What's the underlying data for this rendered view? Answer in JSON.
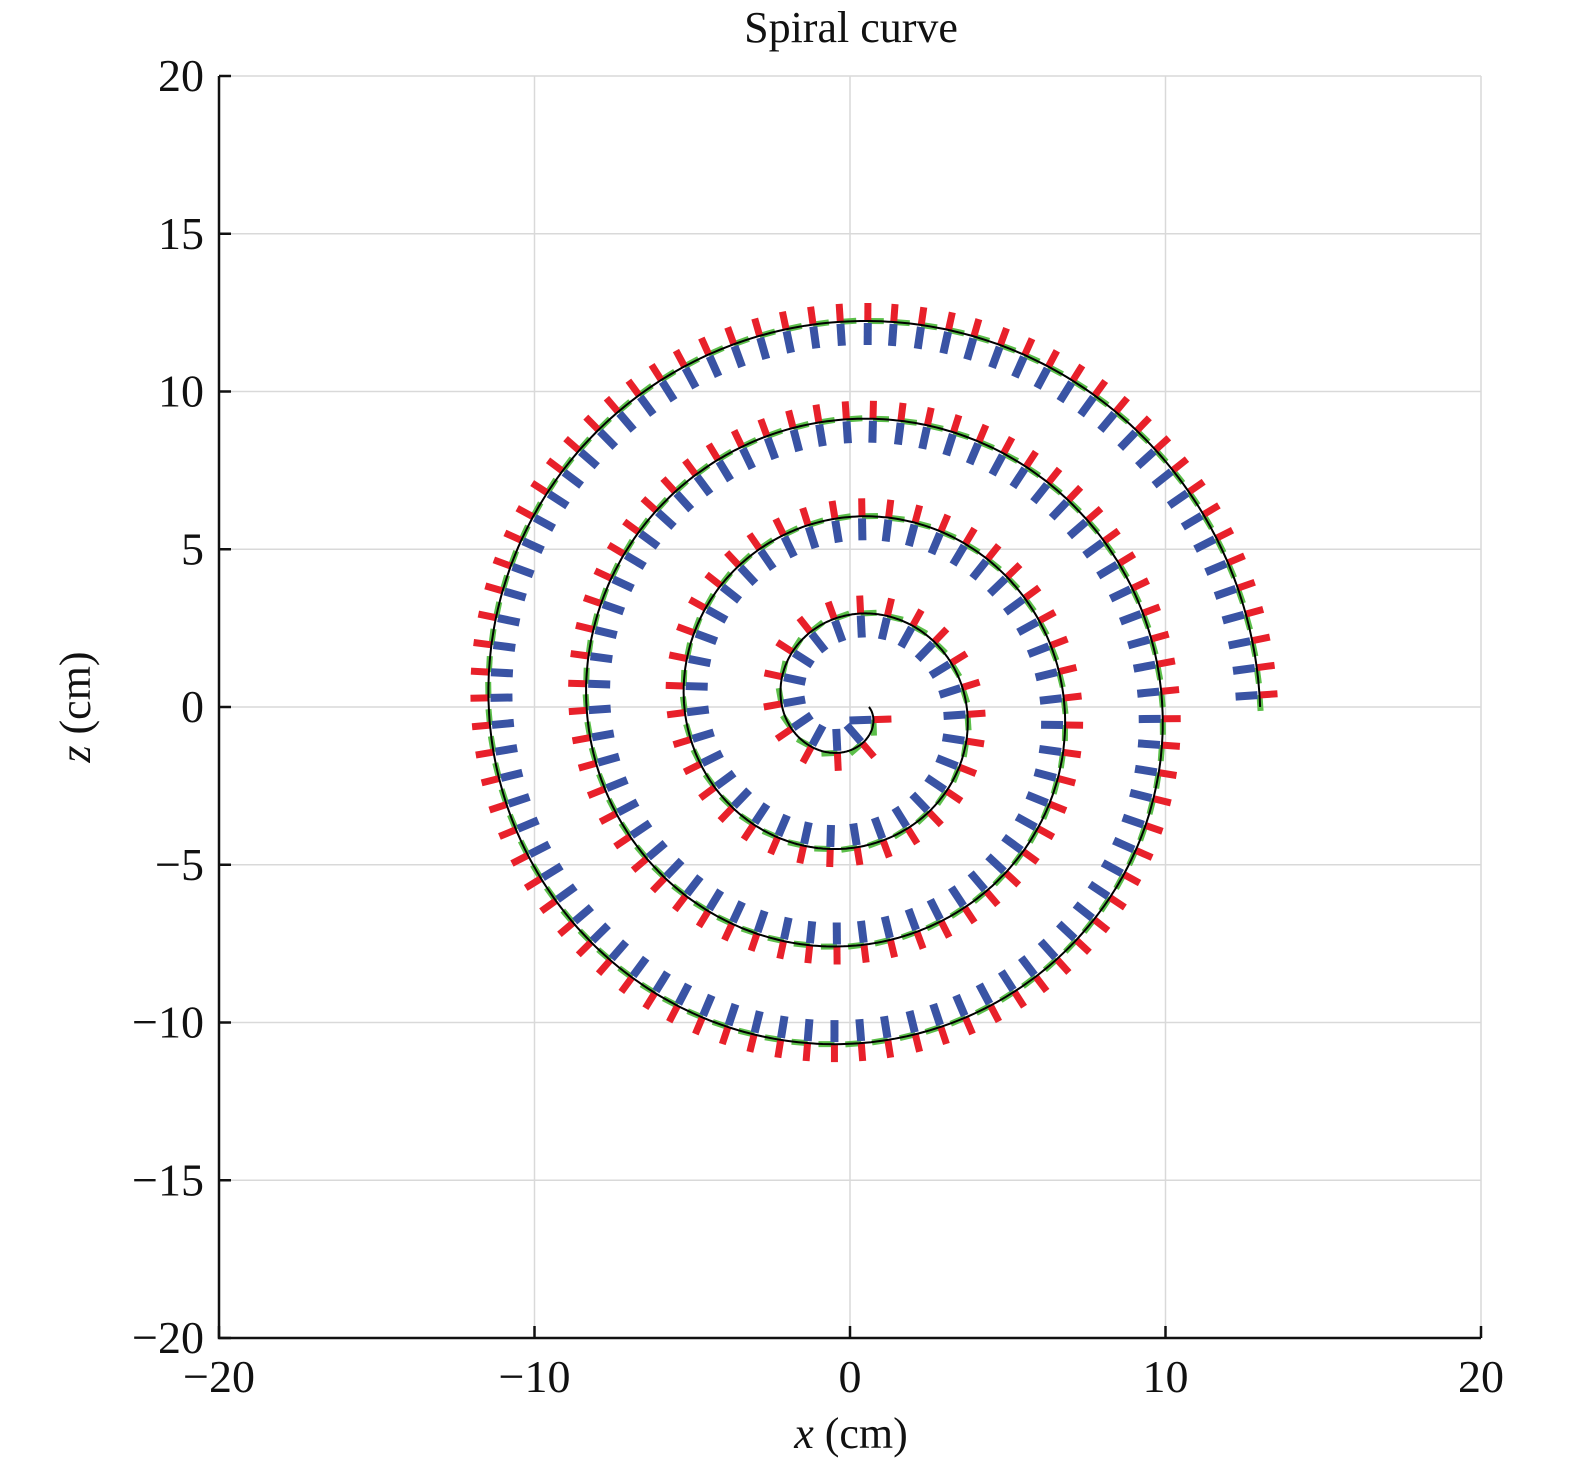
{
  "chart_data": {
    "type": "line",
    "title": "Spiral curve",
    "xlabel_var": "x",
    "xlabel_unit": " (cm)",
    "ylabel_var": "z",
    "ylabel_unit": " (cm)",
    "xlim": [
      -20,
      20
    ],
    "ylim": [
      -20,
      20
    ],
    "xticks": [
      -20,
      -10,
      0,
      10,
      20
    ],
    "yticks": [
      -20,
      -15,
      -10,
      -5,
      0,
      5,
      10,
      15,
      20
    ],
    "xtick_labels": [
      "−20",
      "−10",
      "0",
      "10",
      "20"
    ],
    "ytick_labels": [
      "−20",
      "−15",
      "−10",
      "−5",
      "0",
      "5",
      "10",
      "15",
      "20"
    ],
    "grid": true,
    "curve": {
      "shape": "archimedean spiral",
      "center": [
        0,
        0
      ],
      "start_radius": 0.6,
      "end_radius": 13.0,
      "turns": 4,
      "color": "#000000"
    },
    "frame_markers": {
      "count": 200,
      "colors": {
        "x_axis": "#e8202a",
        "y_axis": "#5cbf4a",
        "z_axis": "#3953a4"
      }
    }
  }
}
